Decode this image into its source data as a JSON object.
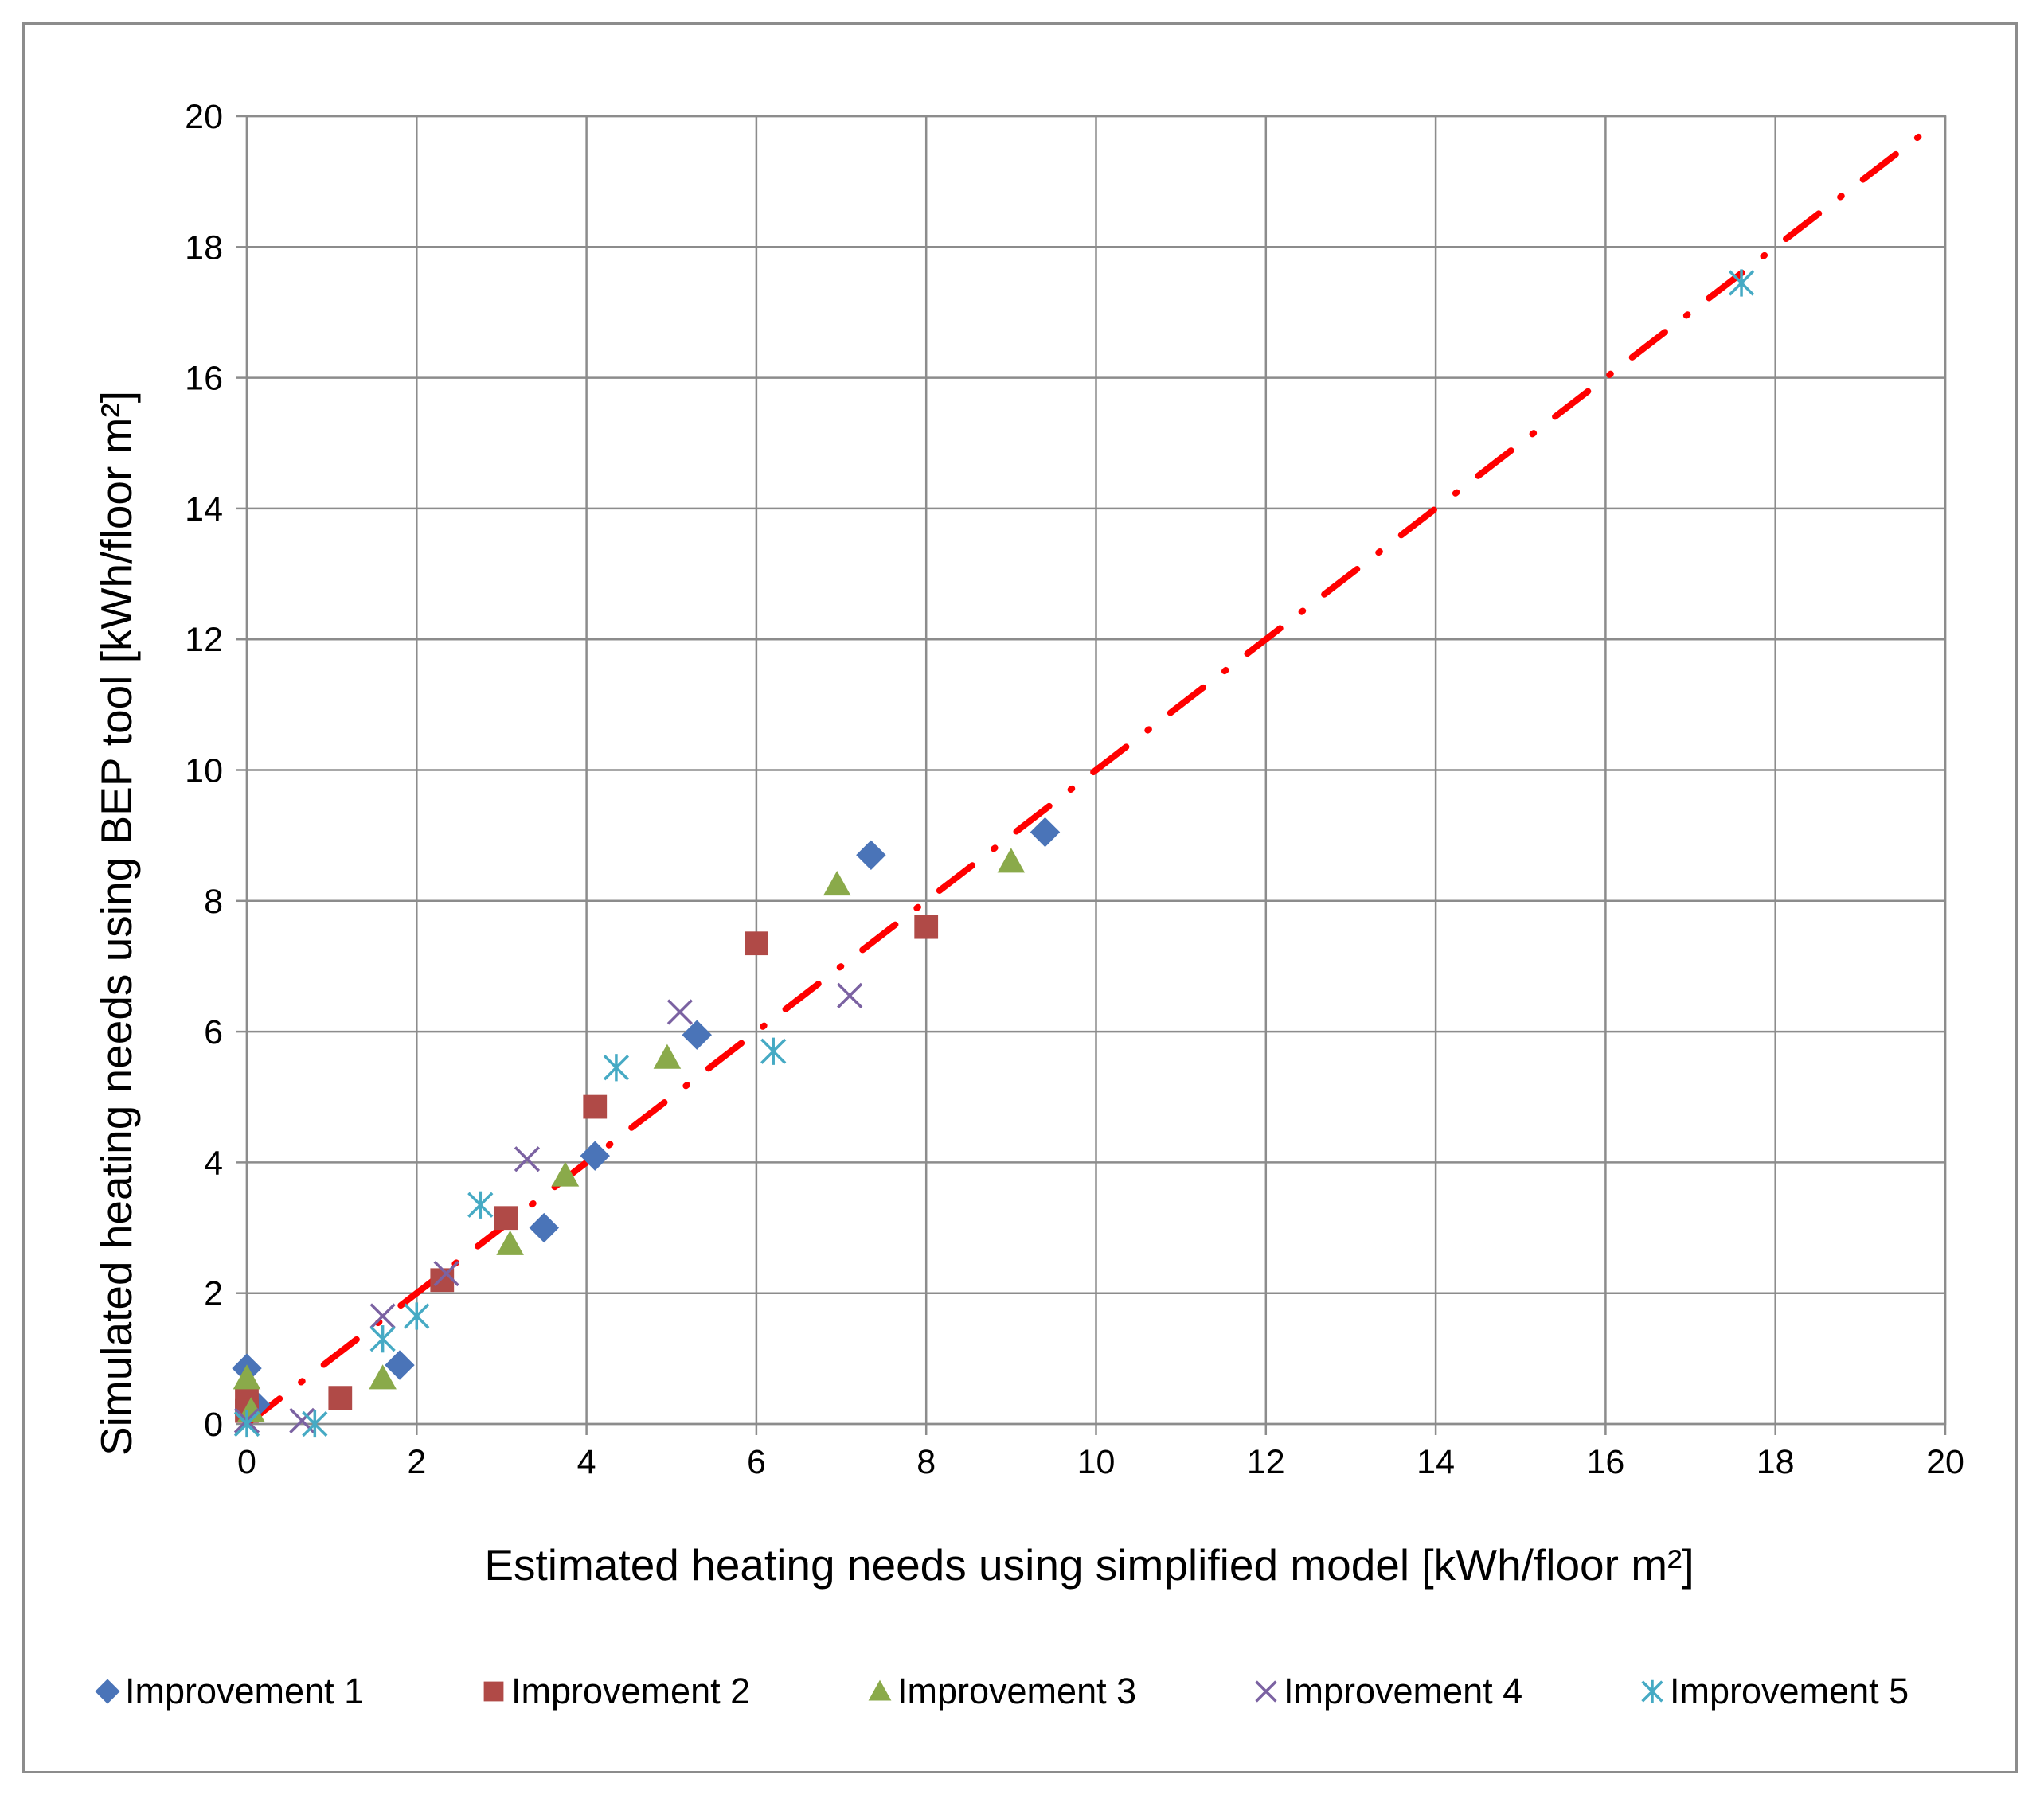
{
  "chart_data": {
    "type": "scatter",
    "xlabel": "Estimated heating needs using simplified model [kWh/floor m²]",
    "ylabel": "Simulated heating needs using BEP tool  [kWh/floor m²]",
    "xlim": [
      0,
      20
    ],
    "ylim": [
      0,
      20
    ],
    "xticks": [
      "0",
      "2",
      "4",
      "6",
      "8",
      "10",
      "12",
      "14",
      "16",
      "18",
      "20"
    ],
    "yticks": [
      "0",
      "2",
      "4",
      "6",
      "8",
      "10",
      "12",
      "14",
      "16",
      "18",
      "20"
    ],
    "grid": true,
    "legend_position": "bottom",
    "reference_line": {
      "style": "dash-dot",
      "color": "#ff0000",
      "points": [
        [
          0,
          0
        ],
        [
          19.8,
          19.8
        ]
      ]
    },
    "series": [
      {
        "name": "Improvement 1",
        "marker": "diamond",
        "color": "#4a74b8",
        "points": [
          [
            0,
            0.85
          ],
          [
            0.1,
            0.3
          ],
          [
            1.8,
            0.9
          ],
          [
            3.5,
            3.0
          ],
          [
            4.1,
            4.1
          ],
          [
            5.3,
            5.95
          ],
          [
            7.35,
            8.7
          ],
          [
            9.4,
            9.05
          ]
        ]
      },
      {
        "name": "Improvement 2",
        "marker": "square",
        "color": "#b04a47",
        "points": [
          [
            0,
            0.4
          ],
          [
            0,
            0.2
          ],
          [
            1.1,
            0.4
          ],
          [
            2.3,
            2.2
          ],
          [
            3.05,
            3.15
          ],
          [
            4.1,
            4.85
          ],
          [
            6.0,
            7.35
          ],
          [
            8.0,
            7.6
          ]
        ]
      },
      {
        "name": "Improvement 3",
        "marker": "triangle",
        "color": "#8aaa4a",
        "points": [
          [
            0,
            0.7
          ],
          [
            0.05,
            0.2
          ],
          [
            1.6,
            0.7
          ],
          [
            3.1,
            2.75
          ],
          [
            3.75,
            3.8
          ],
          [
            4.95,
            5.6
          ],
          [
            6.95,
            8.25
          ],
          [
            9.0,
            8.6
          ]
        ]
      },
      {
        "name": "Improvement 4",
        "marker": "x",
        "color": "#7b62a2",
        "points": [
          [
            0,
            0.05
          ],
          [
            0.65,
            0.05
          ],
          [
            1.6,
            1.65
          ],
          [
            2.35,
            2.3
          ],
          [
            3.3,
            4.05
          ],
          [
            5.1,
            6.3
          ],
          [
            7.1,
            6.55
          ]
        ]
      },
      {
        "name": "Improvement 5",
        "marker": "asterisk",
        "color": "#46aac4",
        "points": [
          [
            0,
            0.0
          ],
          [
            0.8,
            0.0
          ],
          [
            1.6,
            1.3
          ],
          [
            2.0,
            1.65
          ],
          [
            2.75,
            3.35
          ],
          [
            4.35,
            5.45
          ],
          [
            6.2,
            5.7
          ],
          [
            17.6,
            17.45
          ]
        ]
      }
    ]
  }
}
